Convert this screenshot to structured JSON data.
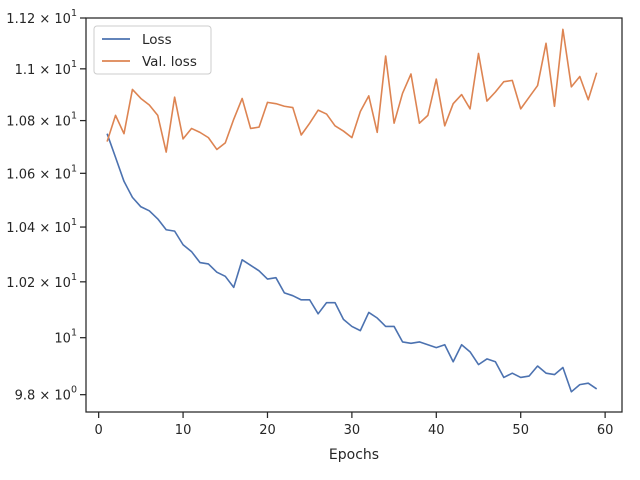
{
  "chart_data": {
    "type": "line",
    "title": "",
    "xlabel": "Epochs",
    "ylabel": "",
    "yscale": "log",
    "grid": false,
    "legend_position": "top-left",
    "xlim": [
      -1.5,
      62
    ],
    "ylim": [
      9.74,
      11.2
    ],
    "x_ticks": [
      0,
      10,
      20,
      30,
      40,
      50,
      60
    ],
    "x_tick_labels": [
      "0",
      "10",
      "20",
      "30",
      "40",
      "50",
      "60"
    ],
    "y_ticks": [
      {
        "value": 9.8,
        "mantissa": "9.8",
        "exp": "0"
      },
      {
        "value": 10.0,
        "mantissa": "",
        "exp": "1"
      },
      {
        "value": 10.2,
        "mantissa": "1.02",
        "exp": "1"
      },
      {
        "value": 10.4,
        "mantissa": "1.04",
        "exp": "1"
      },
      {
        "value": 10.6,
        "mantissa": "1.06",
        "exp": "1"
      },
      {
        "value": 10.8,
        "mantissa": "1.08",
        "exp": "1"
      },
      {
        "value": 11.0,
        "mantissa": "1.1",
        "exp": "1"
      },
      {
        "value": 11.2,
        "mantissa": "1.12",
        "exp": "1"
      }
    ],
    "x": [
      1,
      2,
      3,
      4,
      5,
      6,
      7,
      8,
      9,
      10,
      11,
      12,
      13,
      14,
      15,
      16,
      17,
      18,
      19,
      20,
      21,
      22,
      23,
      24,
      25,
      26,
      27,
      28,
      29,
      30,
      31,
      32,
      33,
      34,
      35,
      36,
      37,
      38,
      39,
      40,
      41,
      42,
      43,
      44,
      45,
      46,
      47,
      48,
      49,
      50,
      51,
      52,
      53,
      54,
      55,
      56,
      57,
      58,
      59
    ],
    "series": [
      {
        "name": "Loss",
        "color": "#4c72b0",
        "values": [
          10.75,
          10.66,
          10.57,
          10.51,
          10.475,
          10.46,
          10.43,
          10.39,
          10.385,
          10.335,
          10.31,
          10.27,
          10.265,
          10.235,
          10.22,
          10.18,
          10.28,
          10.26,
          10.24,
          10.21,
          10.215,
          10.16,
          10.15,
          10.135,
          10.135,
          10.085,
          10.125,
          10.125,
          10.065,
          10.04,
          10.025,
          10.09,
          10.07,
          10.04,
          10.04,
          9.985,
          9.98,
          9.985,
          9.975,
          9.965,
          9.975,
          9.915,
          9.975,
          9.95,
          9.905,
          9.925,
          9.915,
          9.86,
          9.875,
          9.86,
          9.865,
          9.9,
          9.875,
          9.87,
          9.895,
          9.81,
          9.835,
          9.84,
          9.82
        ]
      },
      {
        "name": "Val. loss",
        "color": "#dd8452",
        "values": [
          10.72,
          10.82,
          10.75,
          10.92,
          10.885,
          10.86,
          10.82,
          10.68,
          10.89,
          10.73,
          10.77,
          10.755,
          10.735,
          10.69,
          10.715,
          10.805,
          10.885,
          10.77,
          10.775,
          10.87,
          10.865,
          10.855,
          10.85,
          10.745,
          10.79,
          10.84,
          10.825,
          10.78,
          10.76,
          10.735,
          10.835,
          10.895,
          10.755,
          11.05,
          10.79,
          10.905,
          10.98,
          10.79,
          10.82,
          10.96,
          10.78,
          10.865,
          10.9,
          10.845,
          11.06,
          10.875,
          10.91,
          10.95,
          10.955,
          10.845,
          10.89,
          10.935,
          11.1,
          10.855,
          11.155,
          10.93,
          10.97,
          10.88,
          10.985
        ]
      }
    ]
  }
}
